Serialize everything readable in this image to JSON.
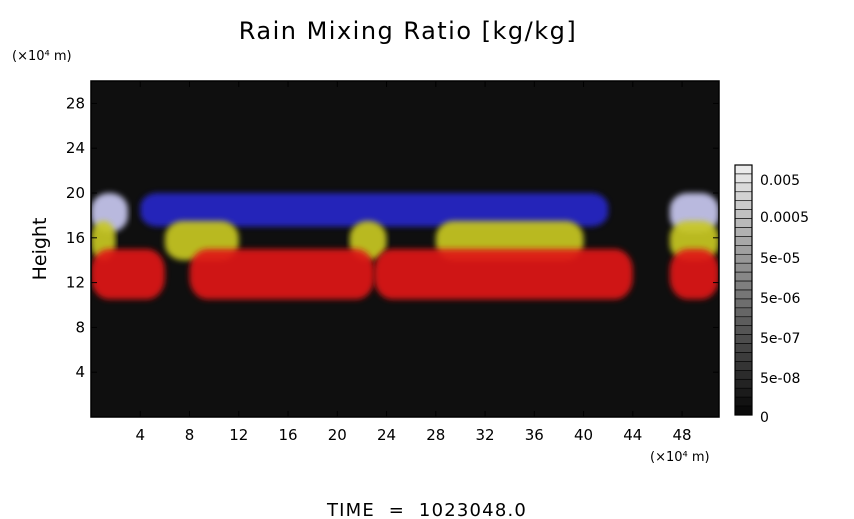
{
  "chart_data": {
    "type": "heatmap",
    "title": "Rain Mixing Ratio [kg/kg]",
    "ylabel": "Height",
    "y_unit": "(×10⁴ m)",
    "x_unit": "(×10⁴ m)",
    "xlim": [
      0,
      51
    ],
    "ylim": [
      0,
      30
    ],
    "x_ticks": [
      "4",
      "8",
      "12",
      "16",
      "20",
      "24",
      "28",
      "32",
      "36",
      "40",
      "44",
      "48"
    ],
    "y_ticks": [
      "4",
      "8",
      "12",
      "16",
      "20",
      "24",
      "28"
    ],
    "colorbar": {
      "labels": [
        "0.005",
        "0.0005",
        "5e-05",
        "5e-06",
        "5e-07",
        "5e-08",
        "0"
      ],
      "levels": [
        "0.005",
        "0.0005",
        "5e-05",
        "5e-06",
        "5e-07",
        "5e-08",
        "0"
      ]
    },
    "layers": [
      {
        "color": "#c8c8f0",
        "y_range": [
          16.5,
          20
        ],
        "x_ranges": [
          [
            0,
            3
          ],
          [
            47,
            51
          ]
        ]
      },
      {
        "color": "#2828c8",
        "y_range": [
          17,
          20
        ],
        "x_ranges": [
          [
            4,
            42
          ]
        ]
      },
      {
        "color": "#c8c820",
        "y_range": [
          14,
          17.5
        ],
        "x_ranges": [
          [
            0,
            2
          ],
          [
            6,
            12
          ],
          [
            21,
            24
          ],
          [
            28,
            40
          ],
          [
            47,
            51
          ]
        ]
      },
      {
        "color": "#e01818",
        "y_range": [
          10.5,
          15
        ],
        "x_ranges": [
          [
            0,
            6
          ],
          [
            8,
            23
          ],
          [
            23,
            44
          ],
          [
            47,
            51
          ]
        ]
      }
    ],
    "background_color": "#0f0f0f",
    "annotation": "TIME  =  1023048.0"
  }
}
